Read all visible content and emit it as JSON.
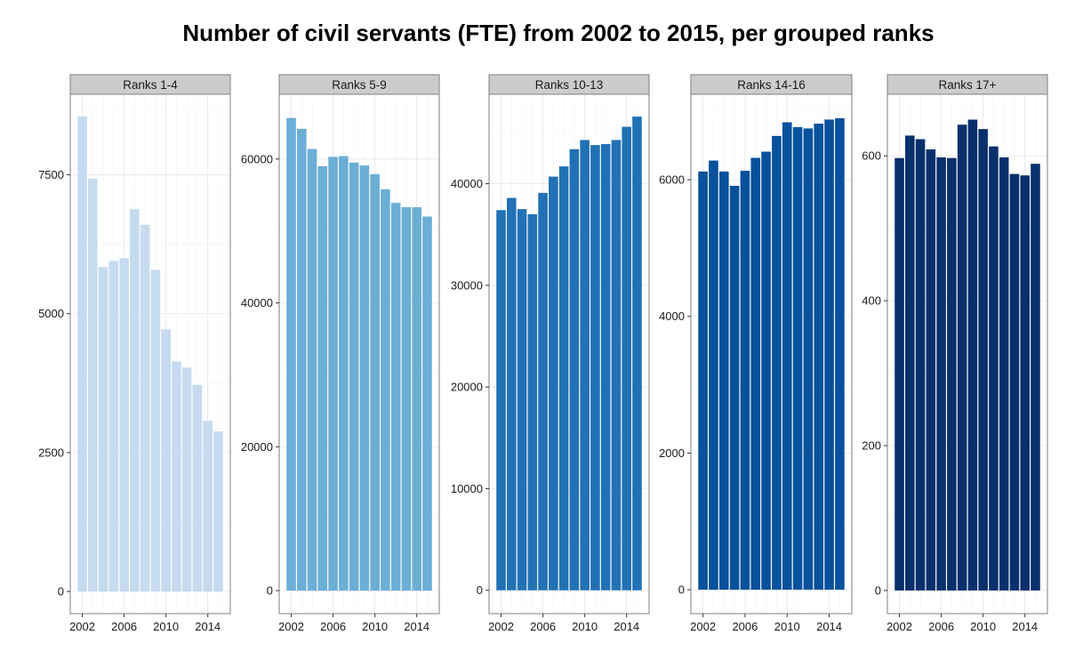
{
  "chart_data": {
    "type": "bar",
    "title": "Number of civil servants (FTE) from 2002 to 2015, per grouped ranks",
    "x": [
      2002,
      2003,
      2004,
      2005,
      2006,
      2007,
      2008,
      2009,
      2010,
      2011,
      2012,
      2013,
      2014,
      2015
    ],
    "x_ticks": [
      2002,
      2006,
      2010,
      2014
    ],
    "xlabel": "",
    "ylabel": "",
    "grid": true,
    "panels": [
      {
        "name": "Ranks 1-4",
        "color": "#c6dbef",
        "ylim": [
          -400,
          8950
        ],
        "y_ticks": [
          0,
          2500,
          5000,
          7500
        ],
        "values": [
          8550,
          7430,
          5840,
          5950,
          6000,
          6880,
          6600,
          5790,
          4720,
          4140,
          4030,
          3720,
          3070,
          2880
        ]
      },
      {
        "name": "Ranks 5-9",
        "color": "#6baed6",
        "ylim": [
          -3200,
          69000
        ],
        "y_ticks": [
          0,
          20000,
          40000,
          60000
        ],
        "values": [
          65700,
          64200,
          61400,
          59000,
          60300,
          60400,
          59500,
          59100,
          57900,
          55800,
          53900,
          53300,
          53300,
          52000
        ]
      },
      {
        "name": "Ranks 10-13",
        "color": "#2171b5",
        "ylim": [
          -2300,
          48800
        ],
        "y_ticks": [
          0,
          10000,
          20000,
          30000,
          40000
        ],
        "values": [
          37400,
          38600,
          37500,
          37000,
          39100,
          40700,
          41700,
          43400,
          44300,
          43800,
          43900,
          44300,
          45600,
          46600
        ]
      },
      {
        "name": "Ranks 14-16",
        "color": "#08519c",
        "ylim": [
          -350,
          7250
        ],
        "y_ticks": [
          0,
          2000,
          4000,
          6000
        ],
        "values": [
          6120,
          6280,
          6120,
          5910,
          6130,
          6320,
          6410,
          6640,
          6840,
          6770,
          6750,
          6820,
          6880,
          6900
        ]
      },
      {
        "name": "Ranks 17+",
        "color": "#08306b",
        "ylim": [
          -32,
          685
        ],
        "y_ticks": [
          0,
          200,
          400,
          600
        ],
        "values": [
          597,
          628,
          623,
          609,
          598,
          597,
          643,
          650,
          637,
          613,
          598,
          575,
          573,
          589
        ]
      }
    ]
  }
}
